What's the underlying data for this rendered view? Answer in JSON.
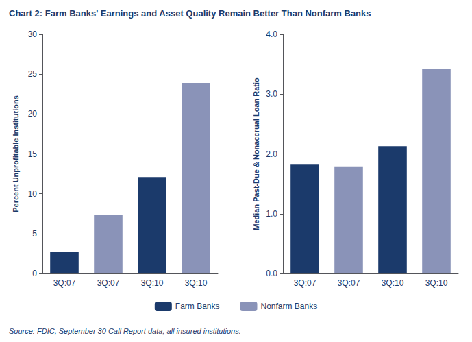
{
  "chart_data": [
    {
      "type": "bar",
      "title": "Chart 2: Farm Banks' Earnings and Asset Quality Remain Better Than Nonfarm Banks",
      "annotation": "Source: FDIC, September 30 Call Report data, all insured institutions.",
      "ylabel": "Percent Unprofitable Institutions",
      "categories": [
        "3Q:07",
        "3Q:07",
        "3Q:10",
        "3Q:10"
      ],
      "series": [
        {
          "name": "Farm Banks",
          "color": "#1b3a6b",
          "values": [
            2.7,
            null,
            12.1,
            null
          ]
        },
        {
          "name": "Nonfarm Banks",
          "color": "#8a93b8",
          "values": [
            null,
            7.3,
            null,
            23.9
          ]
        }
      ],
      "ylim": [
        0,
        30
      ],
      "yticks": [
        0,
        5,
        10,
        15,
        20,
        25,
        30
      ],
      "grid": false,
      "legend": "bottom"
    },
    {
      "type": "bar",
      "ylabel": "Median Past-Due & Nonaccrual Loan Ratio",
      "categories": [
        "3Q:07",
        "3Q:07",
        "3Q:10",
        "3Q:10"
      ],
      "series": [
        {
          "name": "Farm Banks",
          "color": "#1b3a6b",
          "values": [
            1.82,
            null,
            2.13,
            null
          ]
        },
        {
          "name": "Nonfarm Banks",
          "color": "#8a93b8",
          "values": [
            null,
            1.79,
            null,
            3.42
          ]
        }
      ],
      "ylim": [
        0,
        4.0
      ],
      "yticks": [
        {
          "value": 0.0,
          "label": "0.0"
        },
        {
          "value": 1.0,
          "label": "1.0"
        },
        {
          "value": 2.0,
          "label": "2.0"
        },
        {
          "value": 3.0,
          "label": "3.0"
        },
        {
          "value": 4.0,
          "label": "4.0"
        }
      ],
      "grid": false
    }
  ]
}
